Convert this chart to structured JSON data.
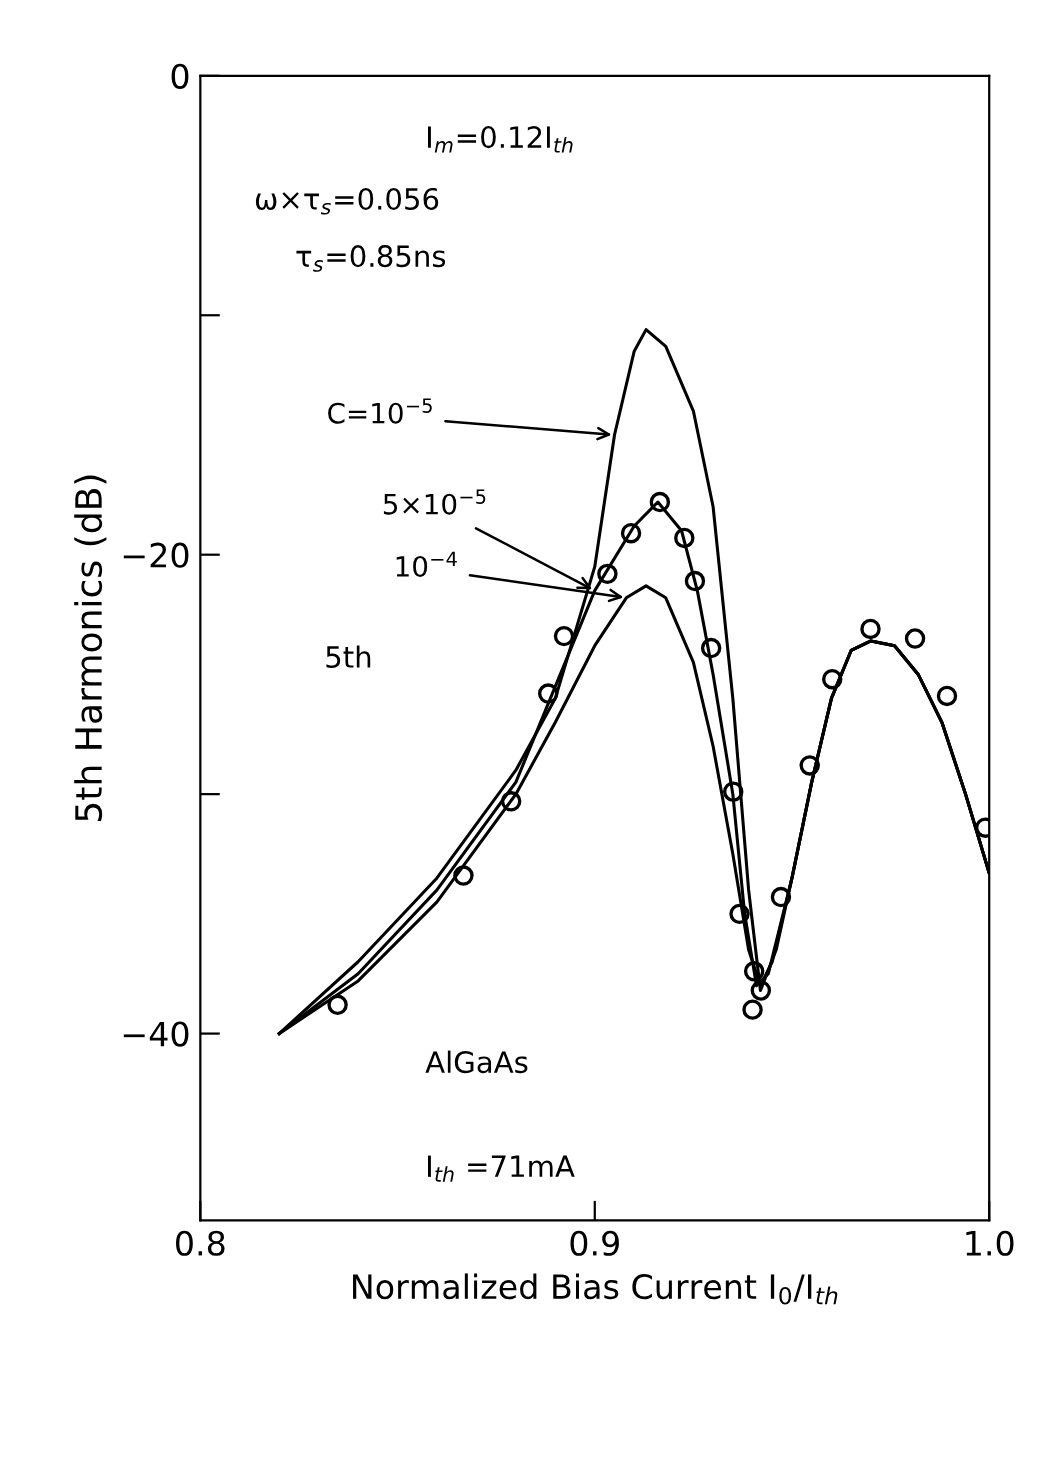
{
  "chart_data": {
    "type": "line",
    "xlabel": "Normalized Bias Current I$_{0}$/I$_{th}$",
    "ylabel": "5th Harmonics (dB)",
    "xlim": [
      0.8,
      1.0
    ],
    "ylim": [
      -47.8,
      0
    ],
    "xticks": [
      0.8,
      0.9,
      {
        "value": 1.0,
        "label": "1.0"
      }
    ],
    "yticks": [
      0,
      {
        "value": -10,
        "label": null
      },
      -20,
      {
        "value": -30,
        "label": null
      },
      -40
    ],
    "grid": false,
    "legend": false,
    "series": [
      {
        "color": "#000000",
        "x": [
          0.82,
          0.84,
          0.86,
          0.88,
          0.89,
          0.9,
          0.905,
          0.91,
          0.913,
          0.918,
          0.925,
          0.93,
          0.935,
          0.939,
          0.942,
          0.946,
          0.95,
          0.955,
          0.96,
          0.965,
          0.97,
          0.976,
          0.982,
          0.988,
          0.994,
          1.0
        ],
        "values": [
          -40,
          -37,
          -33.5,
          -29,
          -26,
          -20.5,
          -15,
          -11.5,
          -10.6,
          -11.3,
          -14,
          -18,
          -26,
          -34,
          -38.2,
          -36.5,
          -33.5,
          -29.5,
          -26,
          -24,
          -23.6,
          -23.8,
          -25,
          -27,
          -30,
          -33.3
        ]
      },
      {
        "color": "#000000",
        "x": [
          0.82,
          0.84,
          0.86,
          0.88,
          0.89,
          0.9,
          0.91,
          0.916,
          0.922,
          0.926,
          0.93,
          0.935,
          0.938,
          0.941,
          0.944,
          0.95,
          0.955,
          0.96,
          0.965,
          0.97,
          0.976,
          0.982,
          0.988,
          0.994,
          1.0
        ],
        "values": [
          -40,
          -37.5,
          -34,
          -29.5,
          -25.5,
          -21.5,
          -18.8,
          -17.8,
          -19,
          -21.5,
          -25,
          -30,
          -35,
          -38,
          -37.5,
          -33.5,
          -29.5,
          -26,
          -24,
          -23.6,
          -23.8,
          -25,
          -27,
          -30,
          -33.3
        ]
      },
      {
        "color": "#000000",
        "x": [
          0.82,
          0.84,
          0.86,
          0.88,
          0.89,
          0.9,
          0.908,
          0.913,
          0.918,
          0.925,
          0.93,
          0.935,
          0.939,
          0.942,
          0.945,
          0.95,
          0.955,
          0.96,
          0.965,
          0.97,
          0.976,
          0.982,
          0.988,
          0.994,
          1.0
        ],
        "values": [
          -40,
          -37.8,
          -34.5,
          -30,
          -27,
          -23.8,
          -21.8,
          -21.3,
          -21.8,
          -24.5,
          -28,
          -32.5,
          -36.5,
          -38,
          -37,
          -33.5,
          -29.5,
          -26,
          -24,
          -23.6,
          -23.8,
          -25,
          -27,
          -30,
          -33.3
        ]
      },
      {
        "type": "scatter",
        "color": "#000000",
        "marker": "circle",
        "x": [
          0.8348,
          0.8667,
          0.8788,
          0.8882,
          0.8922,
          0.9032,
          0.9092,
          0.9165,
          0.9227,
          0.9254,
          0.9295,
          0.9351,
          0.9367,
          0.9404,
          0.9421,
          0.94,
          0.9472,
          0.9545,
          0.9602,
          0.9699,
          0.9812,
          0.9893,
          0.999
        ],
        "values": [
          -38.8,
          -33.4,
          -30.3,
          -25.8,
          -23.4,
          -20.8,
          -19.1,
          -17.8,
          -19.3,
          -21.1,
          -23.9,
          -29.9,
          -35.0,
          -37.4,
          -38.2,
          -39.0,
          -34.3,
          -28.8,
          -25.2,
          -23.1,
          -23.5,
          -25.9,
          -31.4
        ]
      }
    ],
    "annotations": [
      "I$_{m}$=0.12I$_{th}$",
      "ω×τ$_{s}$=0.056",
      "τ$_{s}$=0.85ns",
      {
        "text": "C=10$^{−5}$",
        "x": 0.905,
        "y": -15
      },
      {
        "text": "5×10$^{−5}$",
        "x": 0.9,
        "y": -21.5
      },
      {
        "text": "10$^{−4}$",
        "x": 0.908,
        "y": -21.8
      },
      "5th",
      "AlGaAs",
      "I$_{th}$ =71mA"
    ]
  }
}
